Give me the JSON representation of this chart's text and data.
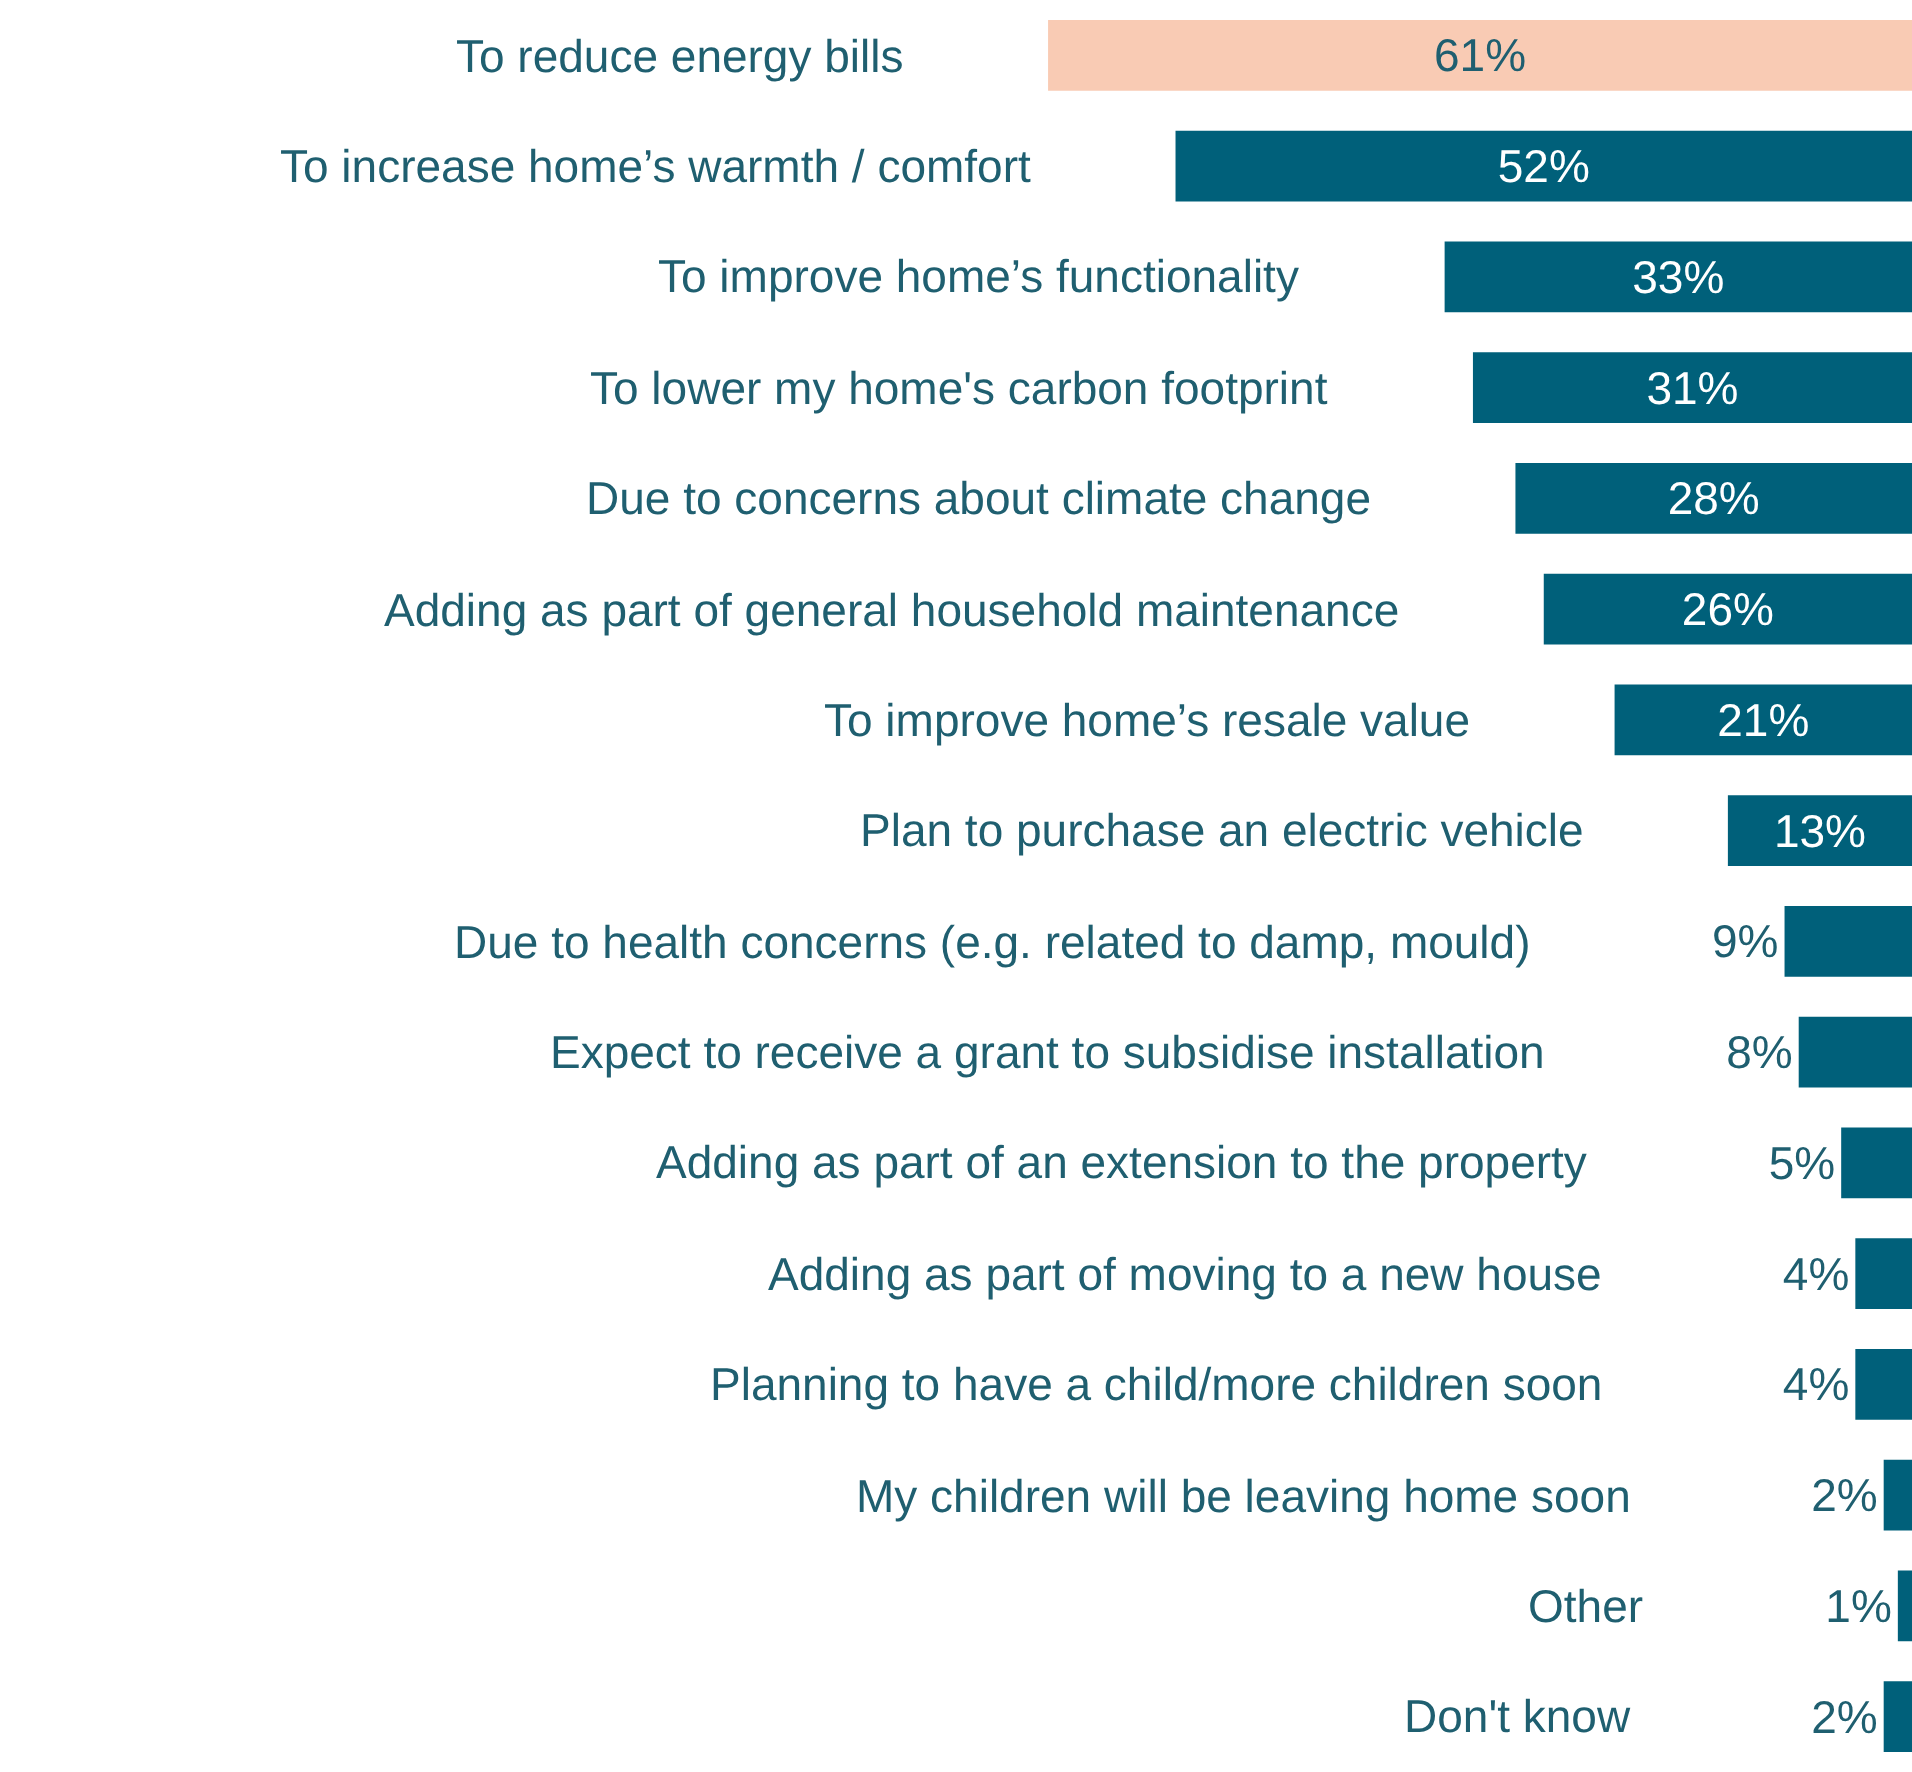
{
  "chart_data": {
    "type": "bar",
    "orientation": "horizontal",
    "categories": [
      "To reduce energy bills",
      "To increase home’s warmth / comfort",
      "To improve home’s functionality",
      "To lower my home's carbon footprint",
      "Due to concerns about climate change",
      "Adding as part of general household maintenance",
      "To improve home’s resale value",
      "Plan to purchase an electric vehicle",
      "Due to health concerns (e.g. related to damp, mould)",
      "Expect to receive a grant to subsidise installation",
      "Adding as part of an extension to the property",
      "Adding as part of moving to a new house",
      "Planning to have a child/more children soon",
      "My children will be leaving home soon",
      "Other",
      "Don't know"
    ],
    "values": [
      61,
      52,
      33,
      31,
      28,
      26,
      21,
      13,
      9,
      8,
      5,
      4,
      4,
      2,
      1,
      2
    ],
    "colors": [
      "#f9cbb4",
      "#00607a",
      "#00607a",
      "#00607a",
      "#00607a",
      "#00607a",
      "#00607a",
      "#00607a",
      "#00607a",
      "#00607a",
      "#00607a",
      "#00607a",
      "#00607a",
      "#00607a",
      "#00607a",
      "#00607a"
    ],
    "value_labels": [
      "61%",
      "52%",
      "33%",
      "31%",
      "28%",
      "26%",
      "21%",
      "13%",
      "9%",
      "8%",
      "5%",
      "4%",
      "4%",
      "2%",
      "1%",
      "2%"
    ],
    "xlim": [
      135,
      0
    ]
  }
}
